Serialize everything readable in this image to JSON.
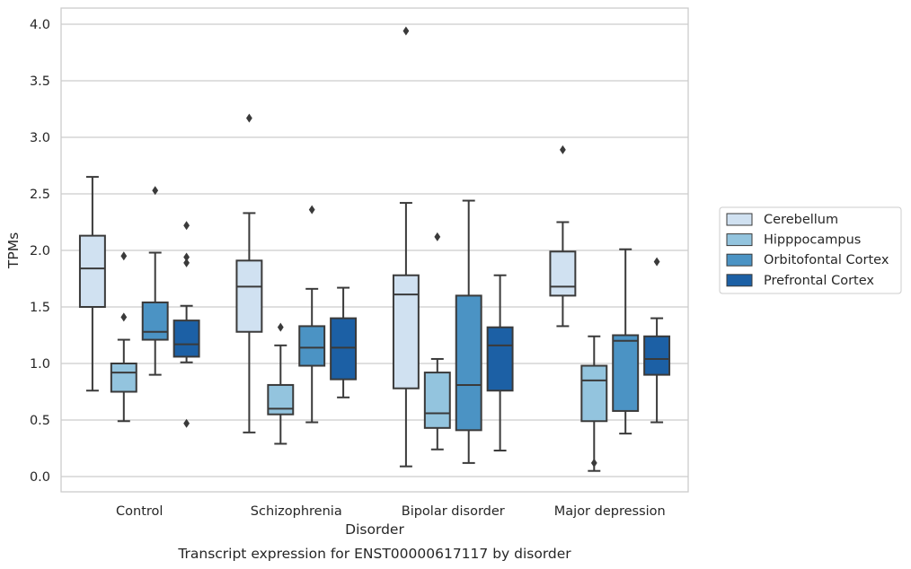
{
  "chart_data": {
    "type": "box",
    "title": "",
    "caption": "Transcript expression for ENST00000617117 by disorder",
    "xlabel": "Disorder",
    "ylabel": "TPMs",
    "ylim": [
      -0.14,
      4.15
    ],
    "yticks": [
      0.0,
      0.5,
      1.0,
      1.5,
      2.0,
      2.5,
      3.0,
      3.5,
      4.0
    ],
    "ytick_labels": [
      "0.0",
      "0.5",
      "1.0",
      "1.5",
      "2.0",
      "2.5",
      "3.0",
      "3.5",
      "4.0"
    ],
    "grid": "horizontal",
    "legend_position": "right",
    "categories": [
      "Control",
      "Schizophrenia",
      "Bipolar disorder",
      "Major depression"
    ],
    "series": [
      {
        "name": "Cerebellum",
        "color": "#d0e1f1",
        "boxes": [
          {
            "whislo": 0.76,
            "q1": 1.5,
            "med": 1.84,
            "q3": 2.13,
            "whishi": 2.65,
            "fliers": []
          },
          {
            "whislo": 0.39,
            "q1": 1.28,
            "med": 1.68,
            "q3": 1.91,
            "whishi": 2.33,
            "fliers": [
              3.17
            ]
          },
          {
            "whislo": 0.09,
            "q1": 0.78,
            "med": 1.61,
            "q3": 1.78,
            "whishi": 2.42,
            "fliers": [
              3.94
            ]
          },
          {
            "whislo": 1.33,
            "q1": 1.6,
            "med": 1.68,
            "q3": 1.99,
            "whishi": 2.25,
            "fliers": [
              2.89
            ]
          }
        ]
      },
      {
        "name": "Hipppocampus",
        "color": "#93c4de",
        "boxes": [
          {
            "whislo": 0.49,
            "q1": 0.75,
            "med": 0.92,
            "q3": 1.0,
            "whishi": 1.21,
            "fliers": [
              1.95,
              1.41
            ]
          },
          {
            "whislo": 0.29,
            "q1": 0.55,
            "med": 0.6,
            "q3": 0.81,
            "whishi": 1.16,
            "fliers": [
              1.32
            ]
          },
          {
            "whislo": 0.24,
            "q1": 0.43,
            "med": 0.56,
            "q3": 0.92,
            "whishi": 1.04,
            "fliers": [
              2.12
            ]
          },
          {
            "whislo": 0.05,
            "q1": 0.49,
            "med": 0.85,
            "q3": 0.98,
            "whishi": 1.24,
            "fliers": [
              0.12
            ]
          }
        ]
      },
      {
        "name": "Orbitofontal Cortex",
        "color": "#4b93c4",
        "boxes": [
          {
            "whislo": 0.9,
            "q1": 1.21,
            "med": 1.28,
            "q3": 1.54,
            "whishi": 1.98,
            "fliers": [
              2.53
            ]
          },
          {
            "whislo": 0.48,
            "q1": 0.98,
            "med": 1.14,
            "q3": 1.33,
            "whishi": 1.66,
            "fliers": [
              2.36
            ]
          },
          {
            "whislo": 0.12,
            "q1": 0.41,
            "med": 0.81,
            "q3": 1.6,
            "whishi": 2.44,
            "fliers": []
          },
          {
            "whislo": 0.38,
            "q1": 0.58,
            "med": 1.2,
            "q3": 1.25,
            "whishi": 2.01,
            "fliers": []
          }
        ]
      },
      {
        "name": "Prefrontal Cortex",
        "color": "#1c60a5",
        "boxes": [
          {
            "whislo": 1.01,
            "q1": 1.06,
            "med": 1.17,
            "q3": 1.38,
            "whishi": 1.51,
            "fliers": [
              2.22,
              1.94,
              1.89,
              0.47
            ]
          },
          {
            "whislo": 0.7,
            "q1": 0.86,
            "med": 1.14,
            "q3": 1.4,
            "whishi": 1.67,
            "fliers": []
          },
          {
            "whislo": 0.23,
            "q1": 0.76,
            "med": 1.16,
            "q3": 1.32,
            "whishi": 1.78,
            "fliers": []
          },
          {
            "whislo": 0.48,
            "q1": 0.9,
            "med": 1.04,
            "q3": 1.24,
            "whishi": 1.4,
            "fliers": [
              1.9
            ]
          }
        ]
      }
    ],
    "colors": {
      "grid": "#cccccc",
      "frame": "#cccccc",
      "line": "#3a3a3a"
    }
  }
}
